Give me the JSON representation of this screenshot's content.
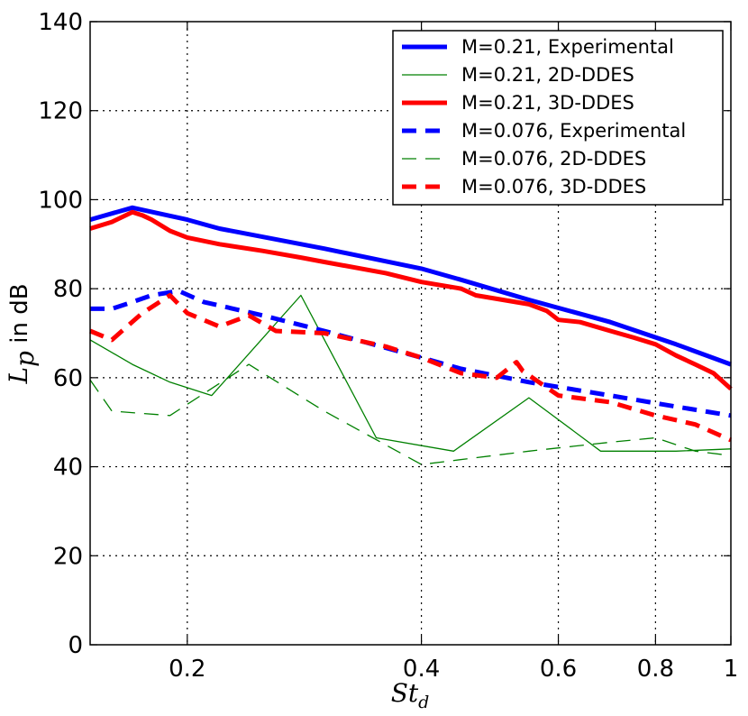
{
  "chart_data": {
    "type": "line",
    "title": "",
    "xlabel": "St",
    "xlabel_sub": "d",
    "ylabel_main": "L",
    "ylabel_sub": "p",
    "ylabel_rest": " in dB",
    "xscale": "log",
    "xlim": [
      0.15,
      1.0
    ],
    "ylim": [
      0,
      140
    ],
    "xticks": [
      0.2,
      0.4,
      0.6,
      0.8,
      1.0
    ],
    "xtick_labels": [
      "0.2",
      "0.4",
      "0.6",
      "0.8",
      "1"
    ],
    "yticks": [
      0,
      20,
      40,
      60,
      80,
      100,
      120,
      140
    ],
    "ytick_labels": [
      "0",
      "20",
      "40",
      "60",
      "80",
      "100",
      "120",
      "140"
    ],
    "grid": true,
    "legend_position": "top-right",
    "series": [
      {
        "name": "M=0.21, Experimental",
        "color": "#0000ff",
        "style": "solid",
        "weight": "thick",
        "x": [
          0.15,
          0.17,
          0.2,
          0.22,
          0.3,
          0.4,
          0.45,
          0.55,
          0.7,
          0.85,
          1.0
        ],
        "y": [
          95.5,
          98.2,
          95.5,
          93.5,
          89.0,
          84.5,
          82.0,
          77.5,
          72.5,
          67.5,
          63.0
        ]
      },
      {
        "name": "M=0.21, 2D-DDES",
        "color": "#008000",
        "style": "solid",
        "weight": "thin",
        "x": [
          0.15,
          0.17,
          0.19,
          0.215,
          0.28,
          0.35,
          0.44,
          0.55,
          0.68,
          0.85,
          1.0
        ],
        "y": [
          68.5,
          63.0,
          59.0,
          56.0,
          78.5,
          46.5,
          43.5,
          55.5,
          43.5,
          43.5,
          44.0
        ]
      },
      {
        "name": "M=0.21, 3D-DDES",
        "color": "#ff0000",
        "style": "solid",
        "weight": "thick",
        "x": [
          0.15,
          0.16,
          0.17,
          0.175,
          0.18,
          0.19,
          0.2,
          0.22,
          0.25,
          0.28,
          0.3,
          0.36,
          0.4,
          0.45,
          0.47,
          0.55,
          0.58,
          0.6,
          0.64,
          0.7,
          0.75,
          0.8,
          0.85,
          0.9,
          0.95,
          1.0
        ],
        "y": [
          93.5,
          95.0,
          97.2,
          96.5,
          95.5,
          93.0,
          91.5,
          90.0,
          88.5,
          87.0,
          86.0,
          83.5,
          81.5,
          80.0,
          78.5,
          76.5,
          75.0,
          73.0,
          72.5,
          70.5,
          69.0,
          67.5,
          65.0,
          63.0,
          61.0,
          57.5
        ]
      },
      {
        "name": "M=0.076, Experimental",
        "color": "#0000ff",
        "style": "dashed",
        "weight": "thick",
        "x": [
          0.15,
          0.16,
          0.17,
          0.18,
          0.195,
          0.21,
          0.25,
          0.3,
          0.4,
          0.45,
          0.55,
          0.7,
          0.85,
          1.0
        ],
        "y": [
          75.5,
          75.5,
          77.0,
          78.5,
          79.5,
          77.0,
          74.0,
          70.5,
          64.5,
          62.0,
          59.0,
          56.0,
          53.5,
          51.5
        ]
      },
      {
        "name": "M=0.076, 2D-DDES",
        "color": "#008000",
        "style": "dashed",
        "weight": "thin",
        "x": [
          0.15,
          0.16,
          0.19,
          0.24,
          0.3,
          0.4,
          0.55,
          0.7,
          0.8,
          0.9,
          1.0
        ],
        "y": [
          59.5,
          52.5,
          51.5,
          63.0,
          52.5,
          40.5,
          43.5,
          45.5,
          46.5,
          43.5,
          42.5
        ]
      },
      {
        "name": "M=0.076, 3D-DDES",
        "color": "#ff0000",
        "style": "dashed",
        "weight": "thick",
        "x": [
          0.15,
          0.16,
          0.175,
          0.19,
          0.2,
          0.22,
          0.24,
          0.26,
          0.3,
          0.36,
          0.4,
          0.45,
          0.5,
          0.53,
          0.54,
          0.6,
          0.7,
          0.8,
          0.9,
          1.0
        ],
        "y": [
          70.5,
          68.5,
          74.5,
          78.5,
          74.5,
          71.5,
          74.0,
          70.5,
          70.0,
          67.0,
          64.5,
          61.0,
          60.0,
          63.5,
          61.5,
          56.0,
          54.5,
          51.5,
          49.5,
          46.0
        ]
      }
    ]
  }
}
